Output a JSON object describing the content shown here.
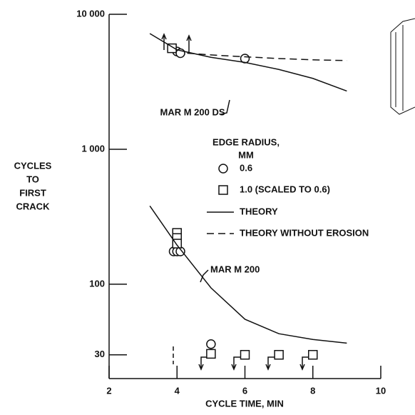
{
  "chart_data": {
    "type": "line",
    "xlabel": "CYCLE TIME, MIN",
    "ylabel": [
      "CYCLES",
      "TO",
      "FIRST",
      "CRACK"
    ],
    "xlim": [
      2,
      10
    ],
    "ylim": [
      20,
      10000
    ],
    "yscale": "log",
    "xticks": [
      2,
      4,
      6,
      8,
      10
    ],
    "yticks": [
      {
        "value": 10000,
        "label": "10 000"
      },
      {
        "value": 1000,
        "label": "1 000"
      },
      100,
      30
    ],
    "legend_title": [
      "EDGE RADIUS,",
      "MM"
    ],
    "series": [
      {
        "name": "0.6",
        "marker": "circle",
        "x": [
          4.0,
          4.1,
          6.0,
          3.9,
          4.0,
          4.1,
          5.0
        ],
        "values": [
          5300,
          5150,
          4700,
          175,
          175,
          175,
          36
        ]
      },
      {
        "name": "1.0 (SCALED TO 0.6)",
        "marker": "square",
        "x": [
          3.85,
          4.0,
          4.0,
          4.0,
          5.0,
          6.0,
          7.0,
          8.0
        ],
        "values": [
          5600,
          240,
          220,
          200,
          30.5,
          30,
          30,
          30
        ]
      },
      {
        "name": "THEORY",
        "style": "solid",
        "lines": [
          {
            "label": "MAR M 200 DS",
            "x": [
              3.2,
              4,
              5,
              6,
              7,
              8,
              9
            ],
            "values": [
              7200,
              5450,
              4800,
              4400,
              3900,
              3350,
              2700
            ]
          },
          {
            "label": "MAR M 200",
            "x": [
              3.2,
              4,
              5,
              6,
              7,
              8,
              9
            ],
            "values": [
              380,
              195,
              94,
              55,
              43,
              39,
              36.6
            ]
          }
        ]
      },
      {
        "name": "THEORY WITHOUT EROSION",
        "style": "dashed",
        "x": [
          4.3,
          5,
          6,
          7,
          8,
          9
        ],
        "values": [
          5150,
          5000,
          4840,
          4700,
          4600,
          4540
        ]
      }
    ]
  }
}
